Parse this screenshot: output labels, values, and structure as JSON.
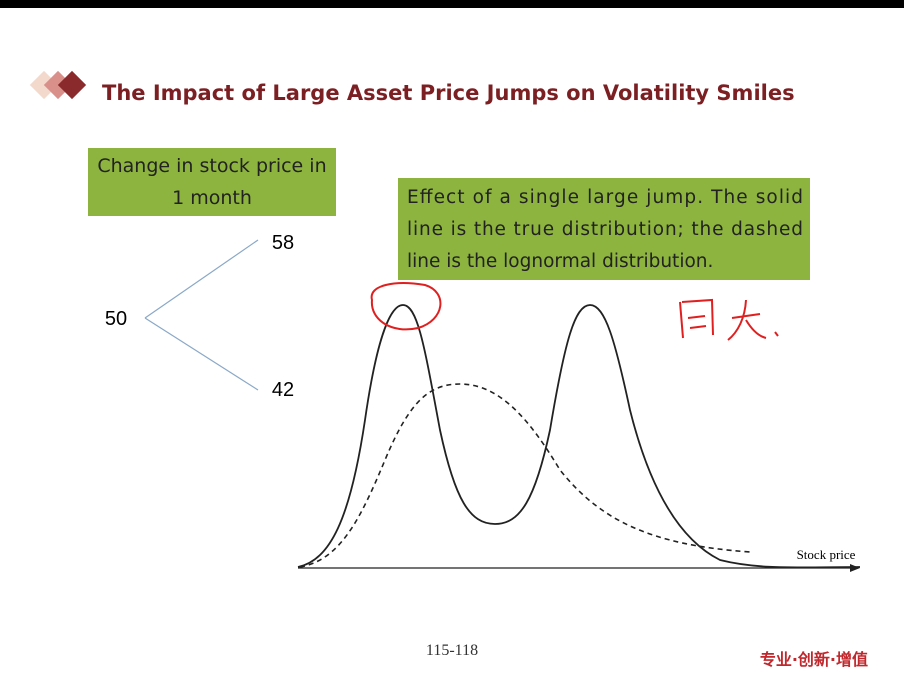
{
  "header": {
    "title": "The Impact of Large Asset Price Jumps on Volatility Smiles"
  },
  "tree_box": {
    "lines": [
      "Change in stock price in",
      "1 month"
    ]
  },
  "tree": {
    "root": "50",
    "up": "58",
    "down": "42"
  },
  "note_box": {
    "lines": [
      "Effect of a single large jump. The solid",
      "line is the true distribution; the dashed",
      "line is the lognormal distribution."
    ]
  },
  "plot": {
    "x_label": "Stock price"
  },
  "footer": {
    "page": "115-118",
    "slogan": "专业·创新·增值"
  }
}
